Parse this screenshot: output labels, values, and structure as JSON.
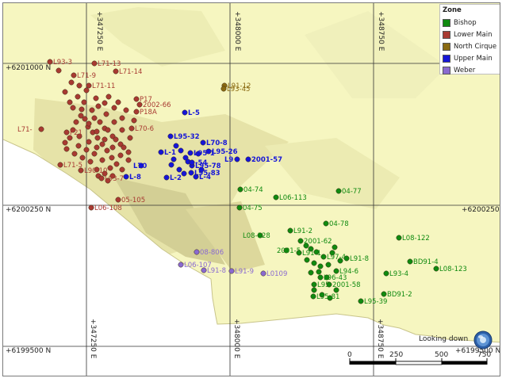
{
  "legend": {
    "title": "Zone",
    "items": [
      {
        "key": "bishop",
        "label": "Bishop",
        "color": "#108a10"
      },
      {
        "key": "lower_main",
        "label": "Lower Main",
        "color": "#a83a32"
      },
      {
        "key": "north_cirque",
        "label": "North Cirque",
        "color": "#8a6a12"
      },
      {
        "key": "upper_main",
        "label": "Upper Main",
        "color": "#1515d8"
      },
      {
        "key": "weber",
        "label": "Weber",
        "color": "#8a6ad0"
      }
    ]
  },
  "grid": {
    "eastings": [
      "+347250 E",
      "+348000 E",
      "+348750 E"
    ],
    "northings": [
      "+6201000 N",
      "+6200250 N",
      "+6199500 N"
    ]
  },
  "orientation_label": "Looking down",
  "scale_bar": {
    "labels": [
      "0",
      "250",
      "500",
      "750"
    ]
  },
  "drillholes": [
    {
      "label": "L93-3",
      "zone": "lower_main"
    },
    {
      "label": "L71-13",
      "zone": "lower_main"
    },
    {
      "label": "L71-14",
      "zone": "lower_main"
    },
    {
      "label": "L71-9",
      "zone": "lower_main"
    },
    {
      "label": "L71-11",
      "zone": "lower_main"
    },
    {
      "label": "P17",
      "zone": "lower_main"
    },
    {
      "label": "2002-66",
      "zone": "lower_main"
    },
    {
      "label": "P18A",
      "zone": "lower_main"
    },
    {
      "label": "L70-6",
      "zone": "lower_main"
    },
    {
      "label": "L71-",
      "zone": "lower_main"
    },
    {
      "label": "P21",
      "zone": "lower_main"
    },
    {
      "label": "L71-5",
      "zone": "lower_main"
    },
    {
      "label": "L93-7",
      "zone": "lower_main"
    },
    {
      "label": "05-105",
      "zone": "lower_main"
    },
    {
      "label": "L06-108",
      "zone": "lower_main"
    },
    {
      "label": "L90-10",
      "zone": "lower_main"
    },
    {
      "label": "L91-12",
      "zone": "north_cirque"
    },
    {
      "label": "L93-45",
      "zone": "north_cirque"
    },
    {
      "label": "L-5",
      "zone": "upper_main"
    },
    {
      "label": "L95-32",
      "zone": "upper_main"
    },
    {
      "label": "L70-8",
      "zone": "upper_main"
    },
    {
      "label": "L95-26",
      "zone": "upper_main"
    },
    {
      "label": "L95-1",
      "zone": "upper_main"
    },
    {
      "label": "2001-57",
      "zone": "upper_main"
    },
    {
      "label": "L9",
      "zone": "upper_main"
    },
    {
      "label": "L-8",
      "zone": "upper_main"
    },
    {
      "label": "L70",
      "zone": "upper_main"
    },
    {
      "label": "L-1",
      "zone": "upper_main"
    },
    {
      "label": "L95-78",
      "zone": "upper_main"
    },
    {
      "label": "L95-83",
      "zone": "upper_main"
    },
    {
      "label": "L-2",
      "zone": "upper_main"
    },
    {
      "label": "L-4",
      "zone": "upper_main"
    },
    {
      "label": "-54",
      "zone": "upper_main"
    },
    {
      "label": "04-74",
      "zone": "bishop"
    },
    {
      "label": "L06-113",
      "zone": "bishop"
    },
    {
      "label": "04-77",
      "zone": "bishop"
    },
    {
      "label": "04-75",
      "zone": "bishop"
    },
    {
      "label": "04-78",
      "zone": "bishop"
    },
    {
      "label": "L08-128",
      "zone": "bishop"
    },
    {
      "label": "L91-2",
      "zone": "bishop"
    },
    {
      "label": "2001-62",
      "zone": "bishop"
    },
    {
      "label": "L08-122",
      "zone": "bishop"
    },
    {
      "label": "L91-1",
      "zone": "bishop"
    },
    {
      "label": "L97-4",
      "zone": "bishop"
    },
    {
      "label": "2001-5",
      "zone": "bishop"
    },
    {
      "label": "L91-8",
      "zone": "bishop"
    },
    {
      "label": "BD91-4",
      "zone": "bishop"
    },
    {
      "label": "L08-123",
      "zone": "bishop"
    },
    {
      "label": "L94-6",
      "zone": "bishop"
    },
    {
      "label": "L93-4",
      "zone": "bishop"
    },
    {
      "label": "L96-43",
      "zone": "bishop"
    },
    {
      "label": "L95",
      "zone": "bishop"
    },
    {
      "label": "2001-58",
      "zone": "bishop"
    },
    {
      "label": "BD91-2",
      "zone": "bishop"
    },
    {
      "label": "L95-81",
      "zone": "bishop"
    },
    {
      "label": "L95-39",
      "zone": "bishop"
    },
    {
      "label": "08-806",
      "zone": "weber"
    },
    {
      "label": "L06-107",
      "zone": "weber"
    },
    {
      "label": "L91-8",
      "zone": "weber"
    },
    {
      "label": "L91-9",
      "zone": "weber"
    },
    {
      "label": "L0109",
      "zone": "weber"
    }
  ]
}
